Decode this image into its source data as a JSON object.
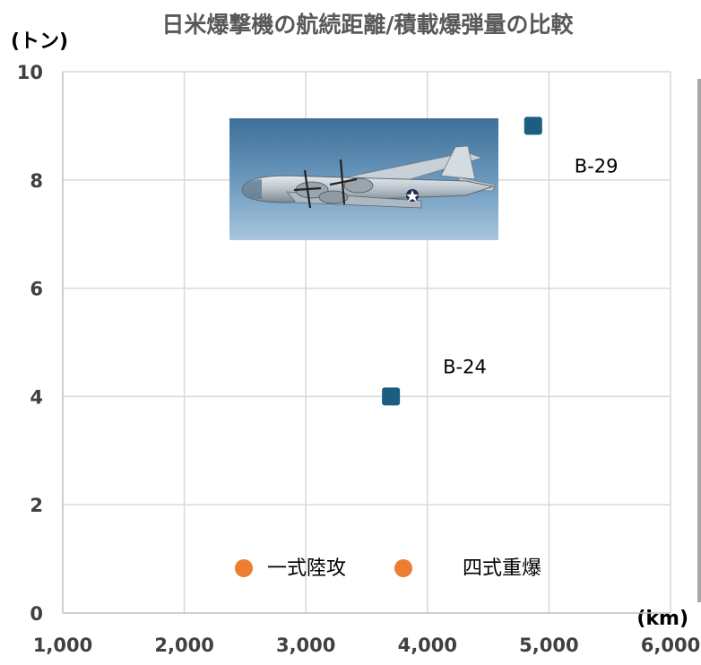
{
  "chart_data": {
    "type": "scatter",
    "title": "日米爆撃機の航続距離/積載爆弾量の比較",
    "xlabel": "(km)",
    "ylabel": "(トン)",
    "xlim": [
      1000,
      6000
    ],
    "ylim": [
      0,
      10
    ],
    "x_ticks": [
      "1,000",
      "2,000",
      "3,000",
      "4,000",
      "5,000",
      "6,000"
    ],
    "y_ticks": [
      "0",
      "2",
      "4",
      "6",
      "8",
      "10"
    ],
    "grid": true,
    "series": [
      {
        "name": "B-29",
        "marker": "square",
        "color": "#1b5e82",
        "points": [
          {
            "x": 4870,
            "y": 9,
            "label": "B-29"
          }
        ]
      },
      {
        "name": "B-24",
        "marker": "square",
        "color": "#1b5e82",
        "points": [
          {
            "x": 3700,
            "y": 4,
            "label": "B-24"
          }
        ]
      }
    ],
    "legend": {
      "position": "bottom-center",
      "entries": [
        {
          "label": "一式陸攻",
          "marker": "circle",
          "color": "#ed7d31"
        },
        {
          "label": "四式重爆",
          "marker": "circle",
          "color": "#ed7d31"
        }
      ]
    },
    "image": {
      "name": "b29-photo",
      "position": "upper-center"
    }
  }
}
